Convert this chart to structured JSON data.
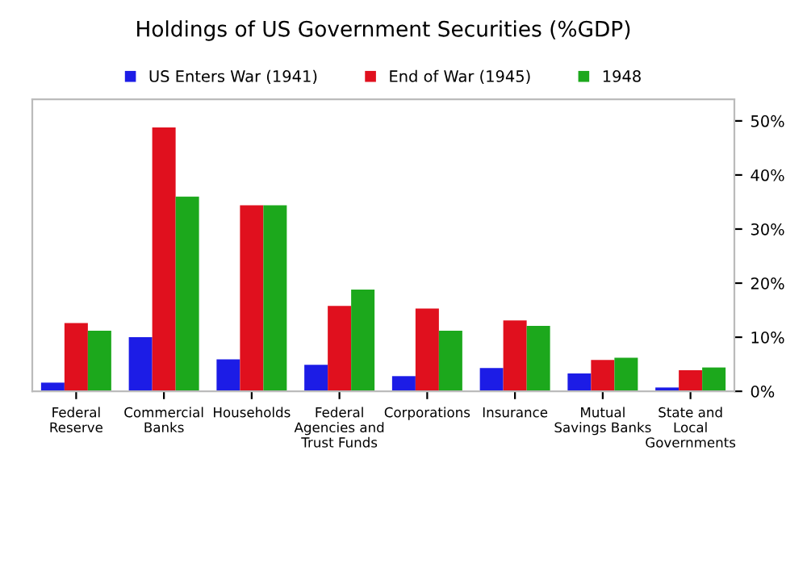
{
  "chart_data": {
    "type": "bar",
    "title": "Holdings of US Government Securities (%GDP)",
    "categories": [
      "Federal\nReserve",
      "Commercial\nBanks",
      "Households",
      "Federal\nAgencies and\nTrust Funds",
      "Corporations",
      "Insurance",
      "Mutual\nSavings Banks",
      "State and\nLocal\nGovernments"
    ],
    "series": [
      {
        "name": "US Enters War (1941)",
        "color": "#1c1ce6",
        "values": [
          1.6,
          10.0,
          5.9,
          4.9,
          2.8,
          4.3,
          3.3,
          0.7
        ]
      },
      {
        "name": "End of War (1945)",
        "color": "#e0101e",
        "values": [
          12.6,
          48.8,
          34.4,
          15.8,
          15.3,
          13.1,
          5.8,
          3.9
        ]
      },
      {
        "name": "1948",
        "color": "#1ca81c",
        "values": [
          11.2,
          36,
          34.4,
          18.8,
          11.2,
          12.1,
          6.2,
          4.4
        ]
      }
    ],
    "ylim": [
      0,
      54
    ],
    "yticks": [
      {
        "value": 0,
        "label": "0%"
      },
      {
        "value": 10,
        "label": "10%"
      },
      {
        "value": 20,
        "label": "20%"
      },
      {
        "value": 30,
        "label": "30%"
      },
      {
        "value": 40,
        "label": "40%"
      },
      {
        "value": 50,
        "label": "50%"
      }
    ],
    "grid": false,
    "legend": "top"
  }
}
